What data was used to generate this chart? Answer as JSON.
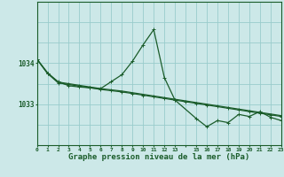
{
  "background_color": "#cce8e8",
  "grid_color": "#99cccc",
  "line_color": "#1a5c2a",
  "xlabel": "Graphe pression niveau de la mer (hPa)",
  "xlabel_fontsize": 6.5,
  "yticks": [
    1033,
    1034
  ],
  "ylim": [
    1032.0,
    1035.5
  ],
  "xlim": [
    0,
    23
  ],
  "xtick_labels": [
    "0",
    "1",
    "2",
    "3",
    "4",
    "5",
    "6",
    "7",
    "8",
    "9",
    "10",
    "11",
    "12",
    "13",
    "",
    "15",
    "16",
    "17",
    "18",
    "19",
    "20",
    "21",
    "22",
    "23"
  ],
  "series1_x": [
    0,
    1,
    2,
    3,
    4,
    5,
    6,
    7,
    8,
    9,
    10,
    11,
    12,
    13,
    15,
    16,
    17,
    18,
    19,
    20,
    21,
    22,
    23
  ],
  "series1_y": [
    1034.1,
    1033.75,
    1033.55,
    1033.45,
    1033.42,
    1033.4,
    1033.38,
    1033.55,
    1033.72,
    1034.05,
    1034.45,
    1034.82,
    1033.65,
    1033.1,
    1032.65,
    1032.45,
    1032.6,
    1032.55,
    1032.75,
    1032.7,
    1032.82,
    1032.68,
    1032.6
  ],
  "series2_x": [
    0,
    1,
    2,
    3,
    4,
    5,
    6,
    7,
    8,
    9,
    10,
    11,
    12,
    13,
    14,
    15,
    16,
    17,
    18,
    19,
    20,
    21,
    22,
    23
  ],
  "series2_y": [
    1034.1,
    1033.75,
    1033.52,
    1033.48,
    1033.44,
    1033.4,
    1033.36,
    1033.33,
    1033.3,
    1033.26,
    1033.22,
    1033.18,
    1033.14,
    1033.1,
    1033.06,
    1033.02,
    1032.98,
    1032.94,
    1032.9,
    1032.86,
    1032.82,
    1032.78,
    1032.74,
    1032.7
  ],
  "series3_x": [
    0,
    1,
    2,
    3,
    4,
    5,
    6,
    7,
    8,
    9,
    10,
    11,
    12,
    13,
    14,
    15,
    16,
    17,
    18,
    19,
    20,
    21,
    22,
    23
  ],
  "series3_y": [
    1034.1,
    1033.77,
    1033.54,
    1033.5,
    1033.46,
    1033.42,
    1033.38,
    1033.35,
    1033.32,
    1033.28,
    1033.24,
    1033.2,
    1033.16,
    1033.12,
    1033.08,
    1033.04,
    1033.0,
    1032.96,
    1032.92,
    1032.88,
    1032.84,
    1032.8,
    1032.76,
    1032.72
  ]
}
